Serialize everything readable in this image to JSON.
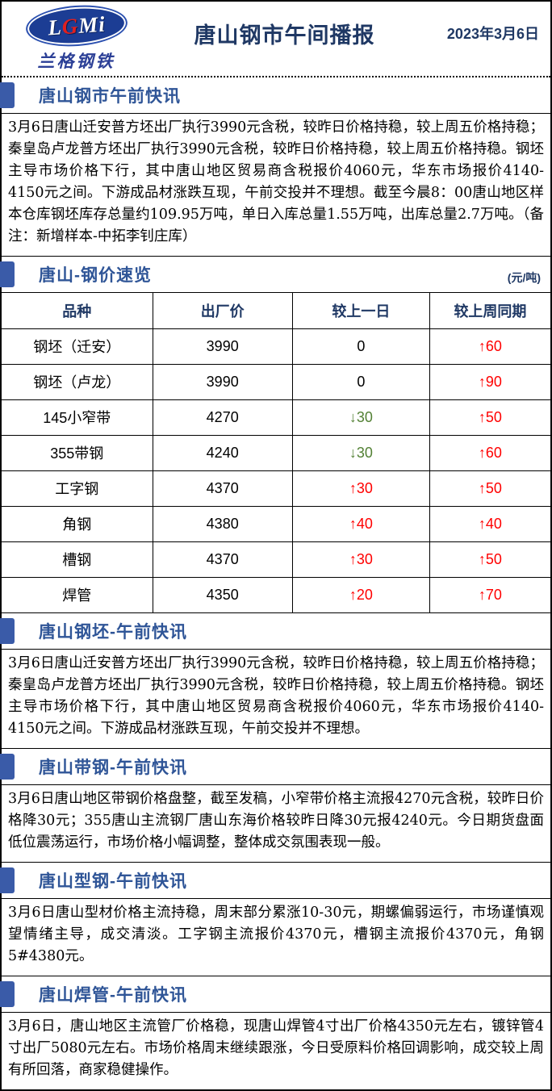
{
  "header": {
    "logo_part1": "L",
    "logo_part2": "G",
    "logo_part3": "Mi",
    "logo_subtext": "兰格钢铁",
    "title": "唐山钢市午间播报",
    "date": "2023年3月6日"
  },
  "sections": {
    "market_brief": {
      "heading": "唐山钢市午前快讯",
      "body": "3月6日唐山迁安普方坯出厂执行3990元含税，较昨日价格持稳，较上周五价格持稳；秦皇岛卢龙普方坯出厂执行3990元含税，较昨日价格持稳，较上周五价格持稳。钢坯主导市场价格下行，其中唐山地区贸易商含税报价4060元，华东市场报价4140-4150元之间。下游成品材涨跌互现，午前交投并不理想。截至今晨8：00唐山地区样本仓库钢坯库存总量约109.95万吨，单日入库总量1.55万吨，出库总量2.7万吨。（备注：新增样本-中拓李钊庄库）"
    },
    "billet": {
      "heading": "唐山钢坯-午前快讯",
      "body": "3月6日唐山迁安普方坯出厂执行3990元含税，较昨日价格持稳，较上周五价格持稳；秦皇岛卢龙普方坯出厂执行3990元含税，较昨日价格持稳，较上周五价格持稳。钢坯主导市场价格下行，其中唐山地区贸易商含税报价4060元，华东市场报价4140-4150元之间。下游成品材涨跌互现，午前交投并不理想。"
    },
    "strip": {
      "heading": "唐山带钢-午前快讯",
      "body": "3月6日唐山地区带钢价格盘整，截至发稿，小窄带价格主流报4270元含税，较昨日价格降30元；355唐山主流钢厂唐山东海价格较昨日降30元报4240元。今日期货盘面低位震荡运行，市场价格小幅调整，整体成交氛围表现一般。"
    },
    "section_steel": {
      "heading": "唐山型钢-午前快讯",
      "body": "3月6日唐山型材价格主流持稳，周末部分累涨10-30元，期螺偏弱运行，市场谨慎观望情绪主导，成交清淡。工字钢主流报价4370元，槽钢主流报价4370元，角钢5#4380元。"
    },
    "welded_pipe": {
      "heading": "唐山焊管-午前快讯",
      "body": "3月6日，唐山地区主流管厂价格稳，现唐山焊管4寸出厂价格4350元左右，镀锌管4寸出厂5080元左右。市场价格周末继续跟涨，今日受原料价格回调影响，成交较上周有所回落，商家稳健操作。"
    }
  },
  "price_table": {
    "heading": "唐山-钢价速览",
    "unit": "(元/吨)",
    "columns": [
      "品种",
      "出厂价",
      "较上一日",
      "较上周同期"
    ],
    "rows": [
      {
        "label": "钢坯（迁安）",
        "price": "3990",
        "day_text": "0",
        "day_dir": "flat",
        "week_text": "↑60",
        "week_dir": "up"
      },
      {
        "label": "钢坯（卢龙）",
        "price": "3990",
        "day_text": "0",
        "day_dir": "flat",
        "week_text": "↑90",
        "week_dir": "up"
      },
      {
        "label": "145小窄带",
        "price": "4270",
        "day_text": "↓30",
        "day_dir": "down",
        "week_text": "↑50",
        "week_dir": "up"
      },
      {
        "label": "355带钢",
        "price": "4240",
        "day_text": "↓30",
        "day_dir": "down",
        "week_text": "↑60",
        "week_dir": "up"
      },
      {
        "label": "工字钢",
        "price": "4370",
        "day_text": "↑30",
        "day_dir": "up",
        "week_text": "↑50",
        "week_dir": "up"
      },
      {
        "label": "角钢",
        "price": "4380",
        "day_text": "↑40",
        "day_dir": "up",
        "week_text": "↑40",
        "week_dir": "up"
      },
      {
        "label": "槽钢",
        "price": "4370",
        "day_text": "↑30",
        "day_dir": "up",
        "week_text": "↑50",
        "week_dir": "up"
      },
      {
        "label": "焊管",
        "price": "4350",
        "day_text": "↑20",
        "day_dir": "up",
        "week_text": "↑70",
        "week_dir": "up"
      }
    ]
  },
  "colors": {
    "navy": "#1f3864",
    "heading_blue": "#2f5597",
    "icon_blue": "#3a5ba8",
    "rise_red": "#ff0000",
    "fall_green": "#538135"
  }
}
